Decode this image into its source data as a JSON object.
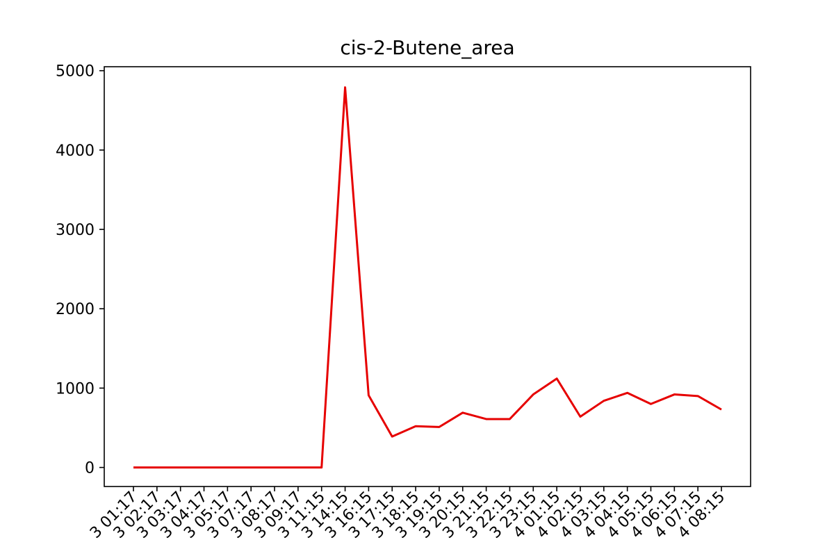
{
  "chart_data": {
    "type": "line",
    "title": "cis-2-Butene_area",
    "xlabel": "",
    "ylabel": "",
    "ylim": [
      -240,
      5050
    ],
    "yticks": [
      0,
      1000,
      2000,
      3000,
      4000,
      5000
    ],
    "grid": false,
    "line_color": "#e60000",
    "x": [
      "3 01:17",
      "3 02:17",
      "3 03:17",
      "3 04:17",
      "3 05:17",
      "3 07:17",
      "3 08:17",
      "3 09:17",
      "3 11:15",
      "3 14:15",
      "3 16:15",
      "3 17:15",
      "3 18:15",
      "3 19:15",
      "3 20:15",
      "3 21:15",
      "3 22:15",
      "3 23:15",
      "4 01:15",
      "4 02:15",
      "4 03:15",
      "4 04:15",
      "4 05:15",
      "4 06:15",
      "4 07:15",
      "4 08:15"
    ],
    "series": [
      {
        "values": [
          0,
          0,
          0,
          0,
          0,
          0,
          0,
          0,
          0,
          4790,
          910,
          390,
          520,
          510,
          690,
          610,
          610,
          920,
          1120,
          640,
          840,
          940,
          800,
          920,
          900,
          730
        ]
      }
    ]
  }
}
